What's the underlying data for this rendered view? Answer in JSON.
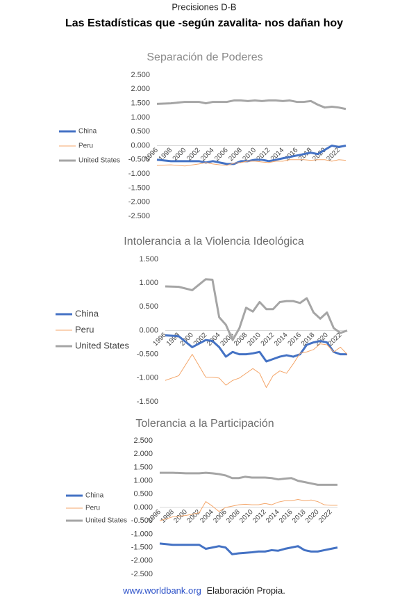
{
  "header": {
    "kicker": "Precisiones D-B",
    "title": "Las Estadísticas que -según zavalita- nos dañan hoy"
  },
  "footer": {
    "source": "www.worldbank.org",
    "note": "Elaboración Propia."
  },
  "chart_data": [
    {
      "type": "line",
      "title": "Separación de Poderes",
      "x": [
        1996,
        1998,
        2000,
        2002,
        2003,
        2004,
        2005,
        2006,
        2007,
        2008,
        2009,
        2010,
        2011,
        2012,
        2013,
        2014,
        2015,
        2016,
        2017,
        2018,
        2019,
        2020,
        2021,
        2022,
        2023
      ],
      "xlim": [
        1996,
        2023
      ],
      "xticks": [
        1996,
        1998,
        2000,
        2002,
        2004,
        2006,
        2008,
        2010,
        2012,
        2014,
        2016,
        2018,
        2020,
        2022
      ],
      "ylim": [
        -2.5,
        2.5
      ],
      "yticks": [
        {
          "value": 2.5,
          "label": "2.500"
        },
        {
          "value": 2,
          "label": "2.000"
        },
        {
          "value": 1.5,
          "label": "1.500"
        },
        {
          "value": 1,
          "label": "1.000"
        },
        {
          "value": 0.5,
          "label": "0.500"
        },
        {
          "value": 0,
          "label": "0.000"
        },
        {
          "value": -0.5,
          "label": "-0.500"
        },
        {
          "value": -1,
          "label": "-1.000"
        },
        {
          "value": -1.5,
          "label": "-1.500"
        },
        {
          "value": -2,
          "label": "-2.000"
        },
        {
          "value": -2.5,
          "label": "-2.500"
        }
      ],
      "series": [
        {
          "name": "China",
          "color": "#4472c4",
          "values": [
            -0.5,
            -0.55,
            -0.55,
            -0.55,
            -0.6,
            -0.55,
            -0.6,
            -0.65,
            -0.65,
            -0.55,
            -0.55,
            -0.5,
            -0.5,
            -0.55,
            -0.5,
            -0.45,
            -0.4,
            -0.35,
            -0.3,
            -0.25,
            -0.3,
            -0.15,
            0.0,
            -0.05,
            0.0
          ]
        },
        {
          "name": "Peru",
          "color": "#f4a66a",
          "values": [
            -0.7,
            -0.68,
            -0.72,
            -0.65,
            -0.6,
            -0.65,
            -0.68,
            -0.7,
            -0.62,
            -0.6,
            -0.55,
            -0.55,
            -0.58,
            -0.6,
            -0.55,
            -0.55,
            -0.5,
            -0.5,
            -0.5,
            -0.52,
            -0.5,
            -0.5,
            -0.55,
            -0.5,
            -0.52
          ]
        },
        {
          "name": "United States",
          "color": "#a5a5a5",
          "values": [
            1.48,
            1.5,
            1.55,
            1.55,
            1.5,
            1.55,
            1.55,
            1.55,
            1.6,
            1.6,
            1.58,
            1.6,
            1.58,
            1.6,
            1.6,
            1.58,
            1.6,
            1.55,
            1.55,
            1.58,
            1.45,
            1.35,
            1.38,
            1.35,
            1.3
          ]
        }
      ]
    },
    {
      "type": "line",
      "title": "Intolerancia a la Violencia Ideológica",
      "x": [
        1996,
        1998,
        2000,
        2002,
        2003,
        2004,
        2005,
        2006,
        2007,
        2008,
        2009,
        2010,
        2011,
        2012,
        2013,
        2014,
        2015,
        2016,
        2017,
        2018,
        2019,
        2020,
        2021,
        2022,
        2023
      ],
      "xlim": [
        1996,
        2023
      ],
      "xticks": [
        1996,
        1998,
        2000,
        2002,
        2004,
        2006,
        2008,
        2010,
        2012,
        2014,
        2016,
        2018,
        2020,
        2022
      ],
      "ylim": [
        -1.5,
        1.5
      ],
      "yticks": [
        {
          "value": 1.5,
          "label": "1.500"
        },
        {
          "value": 1,
          "label": "1.000"
        },
        {
          "value": 0.5,
          "label": "0.500"
        },
        {
          "value": 0,
          "label": "0.000"
        },
        {
          "value": -0.5,
          "label": "-0.500"
        },
        {
          "value": -1,
          "label": "-1.000"
        },
        {
          "value": -1.5,
          "label": "-1.500"
        }
      ],
      "series": [
        {
          "name": "China",
          "color": "#4472c4",
          "values": [
            -0.1,
            -0.12,
            -0.35,
            -0.2,
            -0.22,
            -0.35,
            -0.55,
            -0.45,
            -0.5,
            -0.5,
            -0.48,
            -0.45,
            -0.65,
            -0.6,
            -0.55,
            -0.52,
            -0.55,
            -0.5,
            -0.3,
            -0.25,
            -0.22,
            -0.25,
            -0.45,
            -0.5,
            -0.5
          ]
        },
        {
          "name": "Peru",
          "color": "#f4a66a",
          "values": [
            -1.05,
            -0.95,
            -0.5,
            -0.98,
            -0.98,
            -1.0,
            -1.15,
            -1.05,
            -1.0,
            -0.9,
            -0.8,
            -0.9,
            -1.2,
            -0.95,
            -0.85,
            -0.9,
            -0.7,
            -0.48,
            -0.45,
            -0.4,
            -0.28,
            -0.3,
            -0.45,
            -0.35,
            -0.5
          ]
        },
        {
          "name": "United States",
          "color": "#a5a5a5",
          "values": [
            0.93,
            0.92,
            0.85,
            1.08,
            1.07,
            0.28,
            0.12,
            -0.2,
            0.05,
            0.48,
            0.4,
            0.6,
            0.45,
            0.45,
            0.6,
            0.62,
            0.62,
            0.58,
            0.68,
            0.38,
            0.25,
            0.38,
            0.05,
            -0.05,
            0.0
          ]
        }
      ]
    },
    {
      "type": "line",
      "title": "Tolerancia a la Participación",
      "x": [
        1996,
        1998,
        2000,
        2002,
        2003,
        2004,
        2005,
        2006,
        2007,
        2008,
        2009,
        2010,
        2011,
        2012,
        2013,
        2014,
        2015,
        2016,
        2017,
        2018,
        2019,
        2020,
        2021,
        2022,
        2023
      ],
      "xlim": [
        1996,
        2023
      ],
      "xticks": [
        1996,
        1998,
        2000,
        2002,
        2004,
        2006,
        2008,
        2010,
        2012,
        2014,
        2016,
        2018,
        2020,
        2022
      ],
      "ylim": [
        -2.5,
        2.5
      ],
      "yticks": [
        {
          "value": 2.5,
          "label": "2.500"
        },
        {
          "value": 2,
          "label": "2.000"
        },
        {
          "value": 1.5,
          "label": "1.500"
        },
        {
          "value": 1,
          "label": "1.000"
        },
        {
          "value": 0.5,
          "label": "0.500"
        },
        {
          "value": 0,
          "label": "0.000"
        },
        {
          "value": -0.5,
          "label": "-0.500"
        },
        {
          "value": -1,
          "label": "-1.000"
        },
        {
          "value": -1.5,
          "label": "-1.500"
        },
        {
          "value": -2,
          "label": "-2.000"
        },
        {
          "value": -2.5,
          "label": "-2.500"
        }
      ],
      "series": [
        {
          "name": "China",
          "color": "#4472c4",
          "values": [
            -1.35,
            -1.4,
            -1.4,
            -1.4,
            -1.55,
            -1.5,
            -1.45,
            -1.5,
            -1.75,
            -1.72,
            -1.7,
            -1.68,
            -1.65,
            -1.65,
            -1.6,
            -1.62,
            -1.55,
            -1.5,
            -1.45,
            -1.6,
            -1.65,
            -1.65,
            -1.6,
            -1.55,
            -1.5
          ]
        },
        {
          "name": "Peru",
          "color": "#f4a66a",
          "values": [
            -0.5,
            -0.35,
            -0.3,
            -0.2,
            0.22,
            0.05,
            -0.15,
            0.0,
            0.05,
            0.1,
            0.12,
            0.1,
            0.1,
            0.15,
            0.1,
            0.2,
            0.25,
            0.25,
            0.3,
            0.25,
            0.28,
            0.22,
            0.1,
            0.08,
            0.08
          ]
        },
        {
          "name": "United States",
          "color": "#a5a5a5",
          "values": [
            1.3,
            1.3,
            1.28,
            1.28,
            1.3,
            1.28,
            1.25,
            1.2,
            1.1,
            1.1,
            1.15,
            1.12,
            1.12,
            1.12,
            1.1,
            1.05,
            1.08,
            1.1,
            1.0,
            0.95,
            0.9,
            0.85,
            0.85,
            0.85,
            0.85
          ]
        }
      ]
    }
  ]
}
